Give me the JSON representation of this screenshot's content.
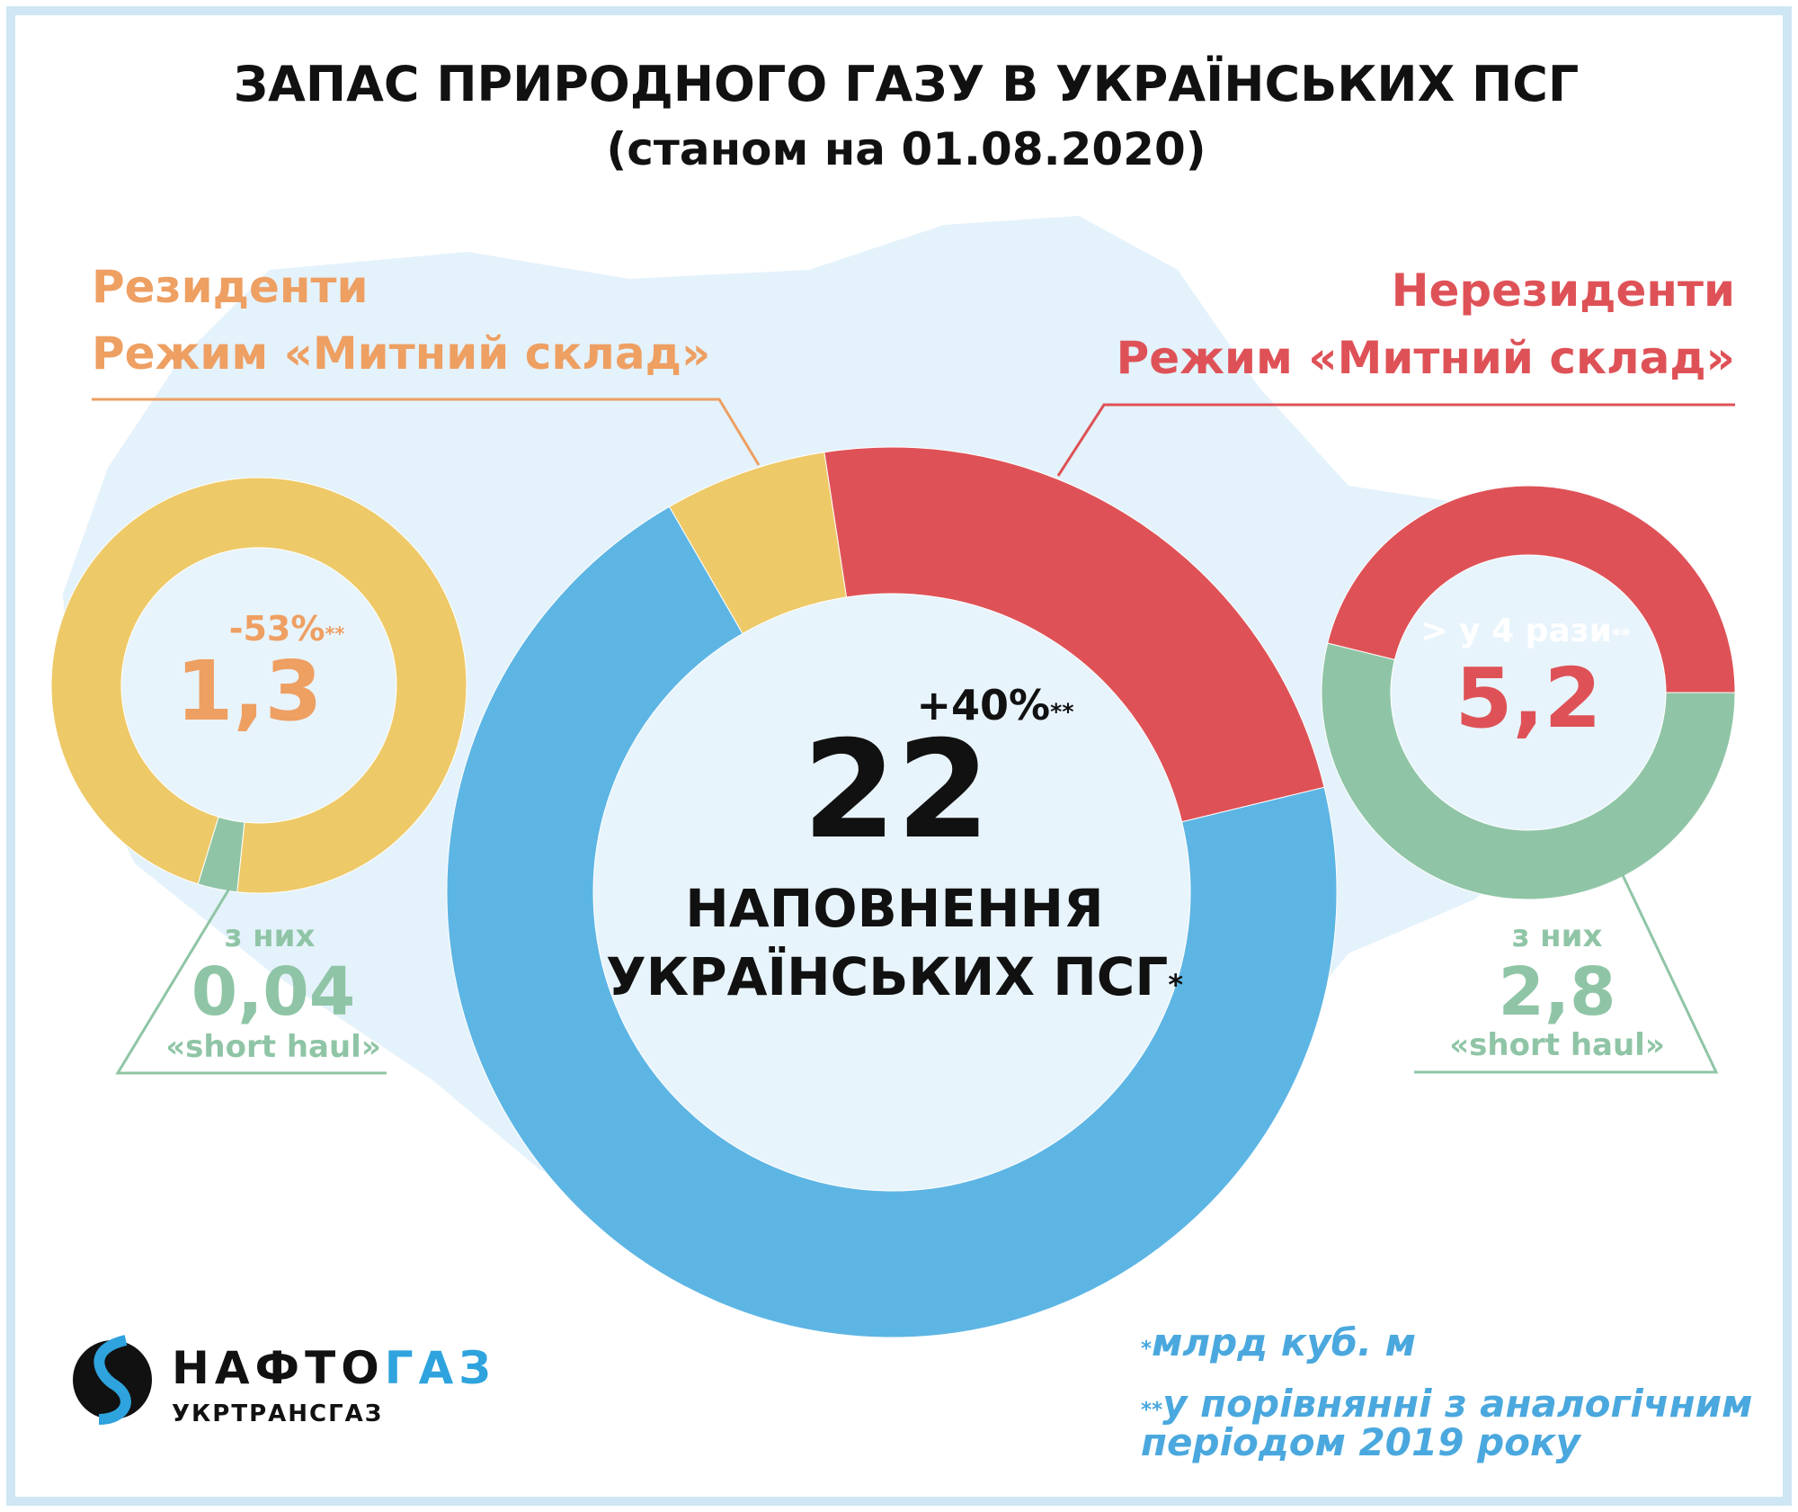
{
  "title": "ЗАПАС ПРИРОДНОГО ГАЗУ В УКРАЇНСЬКИХ ПСГ",
  "subtitle": "(станом на 01.08.2020)",
  "colors": {
    "blue": "#5db5e4",
    "yellow": "#edc968",
    "red": "#de5257",
    "green": "#8fc5a6",
    "orange": "#ee9f62",
    "frame": "#cfe6f5",
    "map": "#e4f2fb",
    "footnote": "#4aa8de"
  },
  "residents": {
    "label1": "Резиденти",
    "label2": "Режим «Митний склад»",
    "change": "-53%",
    "change_mark": "**",
    "value": "1,3",
    "of_which": "з них",
    "short_haul_value": "0,04",
    "short_haul_label": "«short haul»"
  },
  "nonresidents": {
    "label1": "Нерезиденти",
    "label2": "Режим «Митний склад»",
    "change": "> у 4 рази",
    "change_mark": "**",
    "value": "5,2",
    "of_which": "з них",
    "short_haul_value": "2,8",
    "short_haul_label": "«short haul»"
  },
  "center": {
    "change": "+40%",
    "change_mark": "**",
    "value": "22",
    "line1": "НАПОВНЕННЯ",
    "line2": "УКРАЇНСЬКИХ ПСГ",
    "line2_mark": "*"
  },
  "footnotes": {
    "f1_mark": "*",
    "f1": "млрд куб. м",
    "f2_mark": "**",
    "f2_line1": "у порівнянні з аналогічним",
    "f2_line2": "періодом 2019 року"
  },
  "logo": {
    "name_part1": "НАФТО",
    "name_part2": "ГАЗ",
    "sub": "УКРТРАНСГАЗ"
  },
  "chart_data": [
    {
      "type": "pie",
      "name": "total",
      "unit": "млрд куб. м",
      "total": 22,
      "slices": [
        {
          "label": "Резиденти, Режим «Митний склад»",
          "value": 1.3,
          "color": "#edc968"
        },
        {
          "label": "Нерезиденти, Режим «Митний склад»",
          "value": 5.2,
          "color": "#de5257"
        },
        {
          "label": "",
          "value": 15.5,
          "color": "#5db5e4"
        }
      ]
    },
    {
      "type": "pie",
      "name": "residents",
      "total": 1.3,
      "slices": [
        {
          "label": "«short haul»",
          "value": 0.04,
          "color": "#8fc5a6"
        },
        {
          "label": "",
          "value": 1.26,
          "color": "#edc968"
        }
      ]
    },
    {
      "type": "pie",
      "name": "nonresidents",
      "total": 5.2,
      "slices": [
        {
          "label": "«short haul»",
          "value": 2.8,
          "color": "#8fc5a6"
        },
        {
          "label": "",
          "value": 2.4,
          "color": "#de5257"
        }
      ]
    }
  ]
}
